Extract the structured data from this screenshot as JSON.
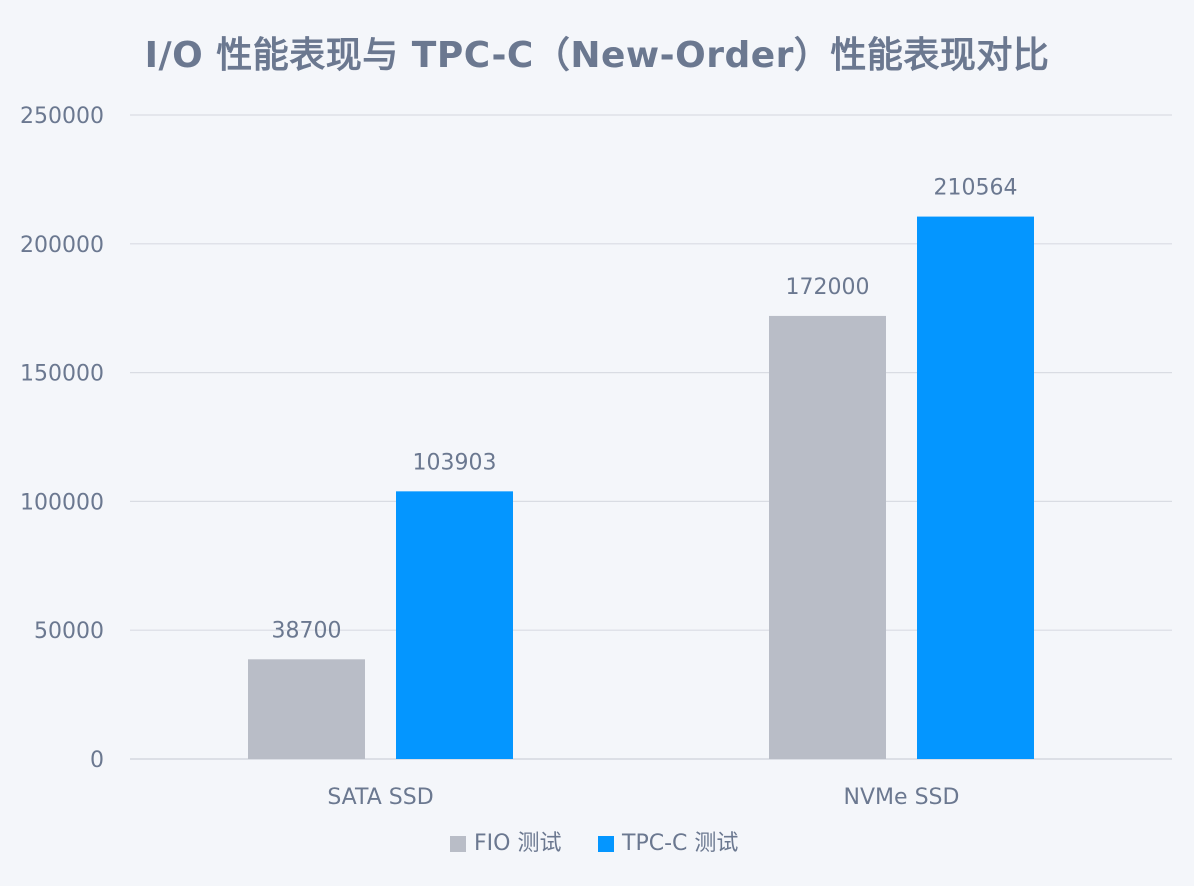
{
  "chart_data": {
    "type": "bar",
    "title": "I/O 性能表现与 TPC-C（New-Order）性能表现对比",
    "xlabel": "",
    "ylabel": "",
    "categories": [
      "SATA SSD",
      "NVMe SSD"
    ],
    "series": [
      {
        "name": "FIO 测试",
        "color": "#b9bdc7",
        "values": [
          38700,
          172000
        ]
      },
      {
        "name": "TPC-C 测试",
        "color": "#0496ff",
        "values": [
          103903,
          210564
        ]
      }
    ],
    "ylim": [
      0,
      250000
    ],
    "yticks": [
      0,
      50000,
      100000,
      150000,
      200000,
      250000
    ],
    "ytick_labels": [
      "0",
      "50000",
      "100000",
      "150000",
      "200000",
      "250000"
    ],
    "grid": true,
    "legend_position": "bottom-center",
    "data_labels": true
  },
  "colors": {
    "background": "#f4f6fa",
    "text": "#6b7890",
    "grid": "#d9dce3"
  }
}
